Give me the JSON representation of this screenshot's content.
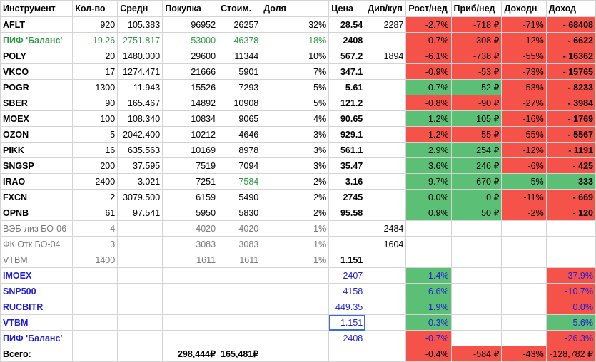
{
  "colors": {
    "positive_fill": "#5cbf76",
    "negative_fill": "#f5534a",
    "fund_text": "#2e9a44",
    "bond_text": "#7a7a7a",
    "benchmark_text": "#1f1fd6"
  },
  "headers": [
    "Инструмент",
    "Кол-во",
    "Средн",
    "Покупка",
    "Стоим.",
    "Доля",
    "Цена",
    "Див/куп",
    "Рост/нед",
    "Приб/нед",
    "Доходн",
    "Доход"
  ],
  "rows": [
    {
      "cells": [
        "AFLT",
        "920",
        "105.383",
        "96952",
        "26257",
        "32%",
        "28.54",
        "2287",
        "-2.7%",
        "-718 ₽",
        "-71%",
        "- 68408"
      ],
      "fills": [
        "",
        "",
        "",
        "",
        "",
        "",
        "",
        "",
        "red",
        "red",
        "red",
        "red"
      ],
      "tone": ""
    },
    {
      "cells": [
        "ПИФ 'Баланс'",
        "19.26",
        "2751.817",
        "53000",
        "46378",
        "18%",
        "2408",
        "",
        "-0.7%",
        "-308 ₽",
        "-12%",
        "- 6622"
      ],
      "fills": [
        "",
        "",
        "",
        "",
        "",
        "",
        "",
        "",
        "red",
        "red",
        "red",
        "red"
      ],
      "tone": "fund"
    },
    {
      "cells": [
        "POLY",
        "20",
        "1480.000",
        "29600",
        "11344",
        "10%",
        "567.2",
        "1894",
        "-6.1%",
        "-738 ₽",
        "-55%",
        "- 16362"
      ],
      "fills": [
        "",
        "",
        "",
        "",
        "",
        "",
        "",
        "",
        "red",
        "red",
        "red",
        "red"
      ],
      "tone": ""
    },
    {
      "cells": [
        "VKCO",
        "17",
        "1274.471",
        "21666",
        "5901",
        "7%",
        "347.1",
        "",
        "-0.9%",
        "-53 ₽",
        "-73%",
        "- 15765"
      ],
      "fills": [
        "",
        "",
        "",
        "",
        "",
        "",
        "",
        "",
        "red",
        "red",
        "red",
        "red"
      ],
      "tone": ""
    },
    {
      "cells": [
        "POGR",
        "1300",
        "11.943",
        "15526",
        "7293",
        "5%",
        "5.61",
        "",
        "0.7%",
        "52 ₽",
        "-53%",
        "- 8233"
      ],
      "fills": [
        "",
        "",
        "",
        "",
        "",
        "",
        "",
        "",
        "green",
        "green",
        "red",
        "red"
      ],
      "tone": ""
    },
    {
      "cells": [
        "SBER",
        "90",
        "165.467",
        "14892",
        "10908",
        "5%",
        "121.2",
        "",
        "-0.8%",
        "-90 ₽",
        "-27%",
        "- 3984"
      ],
      "fills": [
        "",
        "",
        "",
        "",
        "",
        "",
        "",
        "",
        "red",
        "red",
        "red",
        "red"
      ],
      "tone": ""
    },
    {
      "cells": [
        "MOEX",
        "100",
        "108.340",
        "10834",
        "9065",
        "4%",
        "90.65",
        "",
        "1.2%",
        "105 ₽",
        "-16%",
        "- 1769"
      ],
      "fills": [
        "",
        "",
        "",
        "",
        "",
        "",
        "",
        "",
        "green",
        "green",
        "red",
        "red"
      ],
      "tone": ""
    },
    {
      "cells": [
        "OZON",
        "5",
        "2042.400",
        "10212",
        "4646",
        "3%",
        "929.1",
        "",
        "-1.2%",
        "-55 ₽",
        "-55%",
        "- 5567"
      ],
      "fills": [
        "",
        "",
        "",
        "",
        "",
        "",
        "",
        "",
        "red",
        "red",
        "red",
        "red"
      ],
      "tone": ""
    },
    {
      "cells": [
        "PIKK",
        "16",
        "635.563",
        "10169",
        "8978",
        "3%",
        "561.1",
        "",
        "2.9%",
        "254 ₽",
        "-12%",
        "- 1191"
      ],
      "fills": [
        "",
        "",
        "",
        "",
        "",
        "",
        "",
        "",
        "green",
        "green",
        "red",
        "red"
      ],
      "tone": ""
    },
    {
      "cells": [
        "SNGSP",
        "200",
        "37.595",
        "7519",
        "7094",
        "3%",
        "35.47",
        "",
        "3.6%",
        "246 ₽",
        "-6%",
        "- 425"
      ],
      "fills": [
        "",
        "",
        "",
        "",
        "",
        "",
        "",
        "",
        "green",
        "green",
        "red",
        "red"
      ],
      "tone": ""
    },
    {
      "cells": [
        "IRAO",
        "2400",
        "3.021",
        "7251",
        "7584",
        "2%",
        "3.16",
        "",
        "9.7%",
        "670 ₽",
        "5%",
        "333"
      ],
      "fills": [
        "",
        "",
        "",
        "",
        "",
        "",
        "",
        "",
        "green",
        "green",
        "green",
        "green"
      ],
      "tone": "",
      "green_cells": [
        4
      ]
    },
    {
      "cells": [
        "FXCN",
        "2",
        "3079.500",
        "6159",
        "5490",
        "2%",
        "2745",
        "",
        "0.0%",
        "0 ₽",
        "-11%",
        "- 669"
      ],
      "fills": [
        "",
        "",
        "",
        "",
        "",
        "",
        "",
        "",
        "green",
        "green",
        "red",
        "red"
      ],
      "tone": ""
    },
    {
      "cells": [
        "OPNB",
        "61",
        "97.541",
        "5950",
        "5830",
        "2%",
        "95.58",
        "",
        "0.9%",
        "50 ₽",
        "-2%",
        "- 120"
      ],
      "fills": [
        "",
        "",
        "",
        "",
        "",
        "",
        "",
        "",
        "green",
        "green",
        "red",
        "red"
      ],
      "tone": ""
    },
    {
      "cells": [
        "ВЭБ-лиз БО-06",
        "4",
        "",
        "4020",
        "4020",
        "1%",
        "",
        "2484",
        "",
        "",
        "",
        ""
      ],
      "fills": [
        "",
        "",
        "",
        "",
        "",
        "",
        "",
        "",
        "",
        "",
        "",
        ""
      ],
      "tone": "bond"
    },
    {
      "cells": [
        "ФК Отк БО-04",
        "3",
        "",
        "3083",
        "3083",
        "1%",
        "",
        "1604",
        "",
        "",
        "",
        ""
      ],
      "fills": [
        "",
        "",
        "",
        "",
        "",
        "",
        "",
        "",
        "",
        "",
        "",
        ""
      ],
      "tone": "bond"
    },
    {
      "cells": [
        "VTBM",
        "1400",
        "",
        "1611",
        "1611",
        "1%",
        "1.151",
        "",
        "",
        "",
        "",
        ""
      ],
      "fills": [
        "",
        "",
        "",
        "",
        "",
        "",
        "",
        "",
        "",
        "",
        "",
        ""
      ],
      "tone": "bond"
    },
    {
      "cells": [
        "IMOEX",
        "",
        "",
        "",
        "",
        "",
        "2407",
        "",
        "1.4%",
        "",
        "",
        "-37.9%"
      ],
      "fills": [
        "",
        "",
        "",
        "",
        "",
        "",
        "",
        "",
        "green",
        "",
        "",
        "red"
      ],
      "tone": "bench"
    },
    {
      "cells": [
        "SNP500",
        "",
        "",
        "",
        "",
        "",
        "4158",
        "",
        "6.6%",
        "",
        "",
        "-10.7%"
      ],
      "fills": [
        "",
        "",
        "",
        "",
        "",
        "",
        "",
        "",
        "green",
        "",
        "",
        "red"
      ],
      "tone": "bench"
    },
    {
      "cells": [
        "RUCBITR",
        "",
        "",
        "",
        "",
        "",
        "449.35",
        "",
        "1.9%",
        "",
        "",
        "0.0%"
      ],
      "fills": [
        "",
        "",
        "",
        "",
        "",
        "",
        "",
        "",
        "green",
        "",
        "",
        "red"
      ],
      "tone": "bench"
    },
    {
      "cells": [
        "VTBM",
        "",
        "",
        "",
        "",
        "",
        "1.151",
        "",
        "0.3%",
        "",
        "",
        "5.6%"
      ],
      "fills": [
        "",
        "",
        "",
        "",
        "",
        "",
        "",
        "",
        "green",
        "",
        "",
        "green"
      ],
      "tone": "bench",
      "selected": 6
    },
    {
      "cells": [
        "ПИФ 'Баланс'",
        "",
        "",
        "",
        "",
        "",
        "2408",
        "",
        "-0.7%",
        "",
        "",
        "-26.3%"
      ],
      "fills": [
        "",
        "",
        "",
        "",
        "",
        "",
        "",
        "",
        "red",
        "",
        "",
        "red"
      ],
      "tone": "bench"
    },
    {
      "cells": [
        "Всего:",
        "",
        "",
        "298,444₽",
        "165,481₽",
        "",
        "",
        "",
        "-0.4%",
        "-584 ₽",
        "-43%",
        "-128,782 ₽"
      ],
      "fills": [
        "",
        "",
        "",
        "",
        "",
        "",
        "",
        "",
        "red",
        "red",
        "red",
        "red"
      ],
      "tone": "total"
    }
  ]
}
